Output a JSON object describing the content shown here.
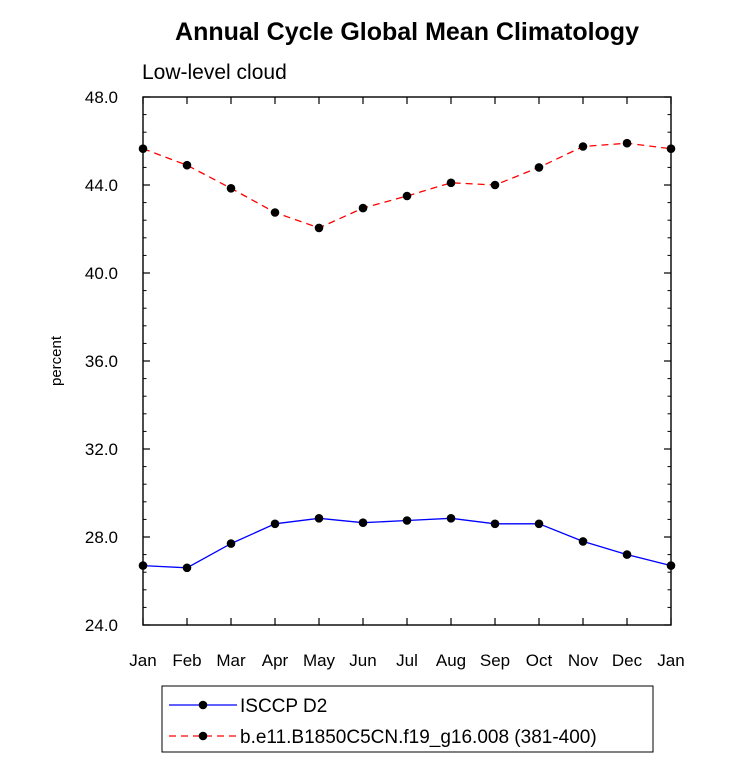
{
  "chart_data": {
    "type": "line",
    "title": "Annual Cycle Global Mean Climatology",
    "subtitle": "Low-level cloud",
    "ylabel": "percent",
    "xlabel": "",
    "categories": [
      "Jan",
      "Feb",
      "Mar",
      "Apr",
      "May",
      "Jun",
      "Jul",
      "Aug",
      "Sep",
      "Oct",
      "Nov",
      "Dec",
      "Jan"
    ],
    "ylim": [
      24.0,
      48.0
    ],
    "yticks": [
      "24.0",
      "28.0",
      "32.0",
      "36.0",
      "40.0",
      "44.0",
      "48.0"
    ],
    "grid": false,
    "legend_position": "bottom",
    "series": [
      {
        "name": "ISCCP D2",
        "color": "#0000ff",
        "line_style": "solid",
        "marker": "filled-circle",
        "values": [
          26.7,
          26.6,
          27.7,
          28.6,
          28.85,
          28.65,
          28.75,
          28.85,
          28.6,
          28.6,
          27.8,
          27.2,
          26.7
        ]
      },
      {
        "name": "b.e11.B1850C5CN.f19_g16.008 (381-400)",
        "color": "#ff0000",
        "line_style": "dashed",
        "marker": "filled-circle",
        "values": [
          45.65,
          44.9,
          43.85,
          42.75,
          42.05,
          42.95,
          43.5,
          44.1,
          44.0,
          44.8,
          45.75,
          45.9,
          45.65
        ]
      }
    ]
  }
}
